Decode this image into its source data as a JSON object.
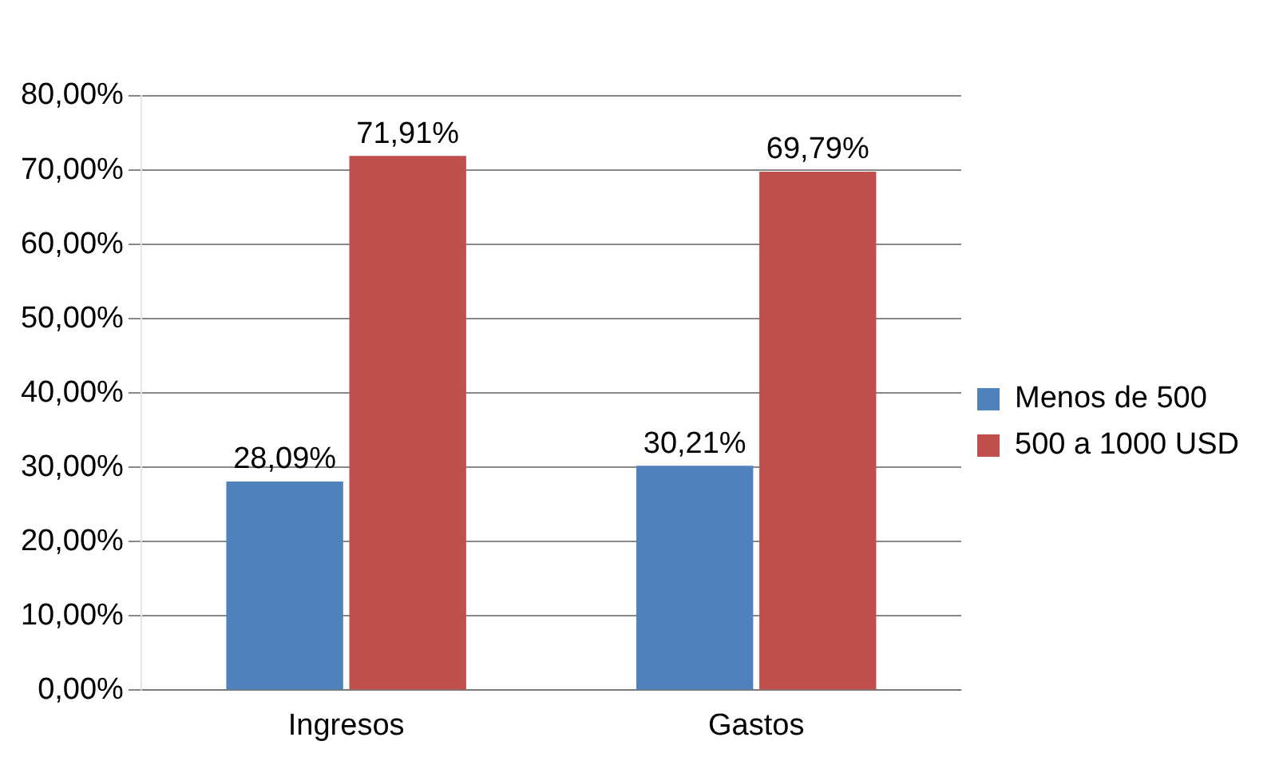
{
  "chart_data": {
    "type": "bar",
    "categories": [
      "Ingresos",
      "Gastos"
    ],
    "series": [
      {
        "name": "Menos de 500",
        "color": "#4f81bd",
        "values": [
          28.09,
          30.21
        ],
        "value_labels": [
          "28,09%",
          "30,21%"
        ]
      },
      {
        "name": "500 a 1000 USD",
        "color": "#c0504d",
        "values": [
          71.91,
          69.79
        ],
        "value_labels": [
          "71,91%",
          "69,79%"
        ]
      }
    ],
    "ylim": [
      0,
      80
    ],
    "yticks": [
      {
        "value": 0,
        "label": "0,00%"
      },
      {
        "value": 10,
        "label": "10,00%"
      },
      {
        "value": 20,
        "label": "20,00%"
      },
      {
        "value": 30,
        "label": "30,00%"
      },
      {
        "value": 40,
        "label": "40,00%"
      },
      {
        "value": 50,
        "label": "50,00%"
      },
      {
        "value": 60,
        "label": "60,00%"
      },
      {
        "value": 70,
        "label": "70,00%"
      },
      {
        "value": 80,
        "label": "80,00%"
      }
    ],
    "grid": "y",
    "legend": "right"
  }
}
